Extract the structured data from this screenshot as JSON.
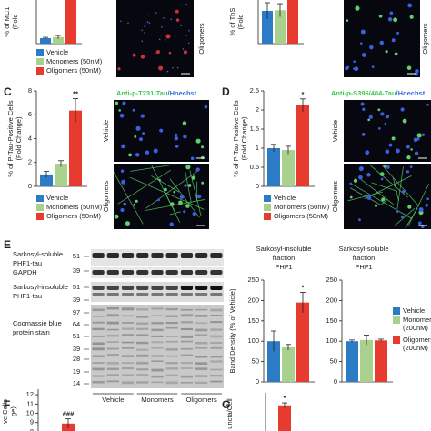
{
  "panels": [
    {
      "type": "bar",
      "y_label": [
        "% of MC1",
        "(Fold"
      ],
      "values": [
        1,
        1.2,
        9
      ],
      "errors": [
        0.15,
        0.3,
        0
      ],
      "ylim": [
        0,
        10
      ],
      "colors": [
        "#2b7cc4",
        "#a9d18e",
        "#e63b2e"
      ],
      "legend": [
        [
          "Vehicle"
        ],
        [
          "Monomers (50nM)"
        ],
        [
          "Oligomers (50nM)"
        ]
      ],
      "image_labels": [
        "Oligomers"
      ]
    },
    {
      "type": "bar",
      "y_label": [
        "% of ThS",
        "(Fold"
      ],
      "values": [
        1,
        1.02,
        1.7
      ],
      "errors": [
        0.25,
        0.2,
        0
      ],
      "ylim": [
        0,
        2
      ],
      "colors": [
        "#2b7cc4",
        "#a9d18e",
        "#e63b2e"
      ],
      "image_labels": [
        "Oligomers"
      ]
    },
    {
      "type": "bar",
      "label": "C",
      "title": "Anti-p-T231-Tau",
      "stain": "/Hoechst",
      "y_label": [
        "% of P-Tau-Positive Cells",
        "(Fold Change)"
      ],
      "values": [
        1,
        1.9,
        6.35
      ],
      "errors": [
        0.25,
        0.25,
        1.0
      ],
      "ylim": [
        0,
        8
      ],
      "yticks": [
        0,
        2,
        4,
        6,
        8
      ],
      "annotation": "**",
      "colors": [
        "#2b7cc4",
        "#a9d18e",
        "#e63b2e"
      ],
      "legend": [
        [
          "Vehicle"
        ],
        [
          "Monomers (50nM)"
        ],
        [
          "Oligomers (50nM)"
        ]
      ],
      "image_labels": [
        "Vehicle",
        "Oligomers"
      ]
    },
    {
      "type": "bar",
      "label": "D",
      "title": "Anti-p-S396/404-Tau",
      "stain": "/Hoechst",
      "y_label": [
        "% of P-Tau-Positive Cells",
        "(Fold Change)"
      ],
      "values": [
        1,
        0.95,
        2.12
      ],
      "errors": [
        0.1,
        0.1,
        0.17
      ],
      "ylim": [
        0,
        2.5
      ],
      "yticks": [
        0,
        0.5,
        1,
        1.5,
        2,
        2.5
      ],
      "annotation": "*",
      "colors": [
        "#2b7cc4",
        "#a9d18e",
        "#e63b2e"
      ],
      "legend": [
        [
          "Vehicle"
        ],
        [
          "Monomers (50nM)"
        ],
        [
          "Oligomers (50nM)"
        ]
      ],
      "image_labels": [
        "Vehicle",
        "Oligomers"
      ]
    },
    {
      "type": "bar",
      "title_lines": [
        "Sarkosyl-insoluble",
        "fraction",
        "PHF1"
      ],
      "y_label": [
        "Band Density (% of Vehicle)"
      ],
      "values": [
        100,
        85,
        195
      ],
      "errors": [
        25,
        7,
        25
      ],
      "ylim": [
        0,
        250
      ],
      "yticks": [
        0,
        50,
        100,
        150,
        200,
        250
      ],
      "annotation": "*",
      "colors": [
        "#2b7cc4",
        "#a9d18e",
        "#e63b2e"
      ]
    },
    {
      "type": "bar",
      "title_lines": [
        "Sarkosyl-soluble",
        "fraction",
        "PHF1"
      ],
      "values": [
        100,
        103,
        102
      ],
      "errors": [
        3,
        12,
        3
      ],
      "ylim": [
        0,
        250
      ],
      "yticks": [
        0,
        50,
        100,
        150,
        200,
        250
      ],
      "colors": [
        "#2b7cc4",
        "#a9d18e",
        "#e63b2e"
      ],
      "legend": [
        [
          "Vehicle"
        ],
        [
          "Monomers",
          "(200nM)"
        ],
        [
          "Oligomers",
          "(200nM)"
        ]
      ]
    },
    {
      "type": "bar",
      "label": "F",
      "y_label": [
        "ve Cells",
        "ge)"
      ],
      "values": [
        8.9
      ],
      "errors": [
        0.5
      ],
      "ylim": [
        7.8,
        12.6
      ],
      "yticks": [
        8,
        9,
        10,
        11,
        12
      ],
      "annotation": "###",
      "colors": [
        "#e63b2e"
      ]
    },
    {
      "type": "bar",
      "label": "G",
      "y_label": [
        "uncta/Cell"
      ],
      "values": [
        1.4
      ],
      "errors": [
        0.12
      ],
      "ylim": [
        0,
        2
      ],
      "annotation": "*",
      "colors": [
        "#e63b2e"
      ]
    }
  ],
  "blot": {
    "label": "E",
    "rows": [
      {
        "lines": [
          "Sarkosyl-soluble",
          "PHF1-tau"
        ]
      },
      {
        "lines": [
          "GAPDH"
        ]
      },
      {
        "lines": [
          "Sarkosyl-insoluble",
          "PHF1-tau"
        ]
      },
      {
        "lines": [
          "Coomassie blue",
          "protein stain"
        ]
      }
    ],
    "markers": [
      51,
      39,
      51,
      39,
      97,
      64,
      51,
      39,
      28,
      19,
      14
    ],
    "lanes": [
      "Vehicle",
      "Monomers",
      "Oligomers"
    ]
  }
}
